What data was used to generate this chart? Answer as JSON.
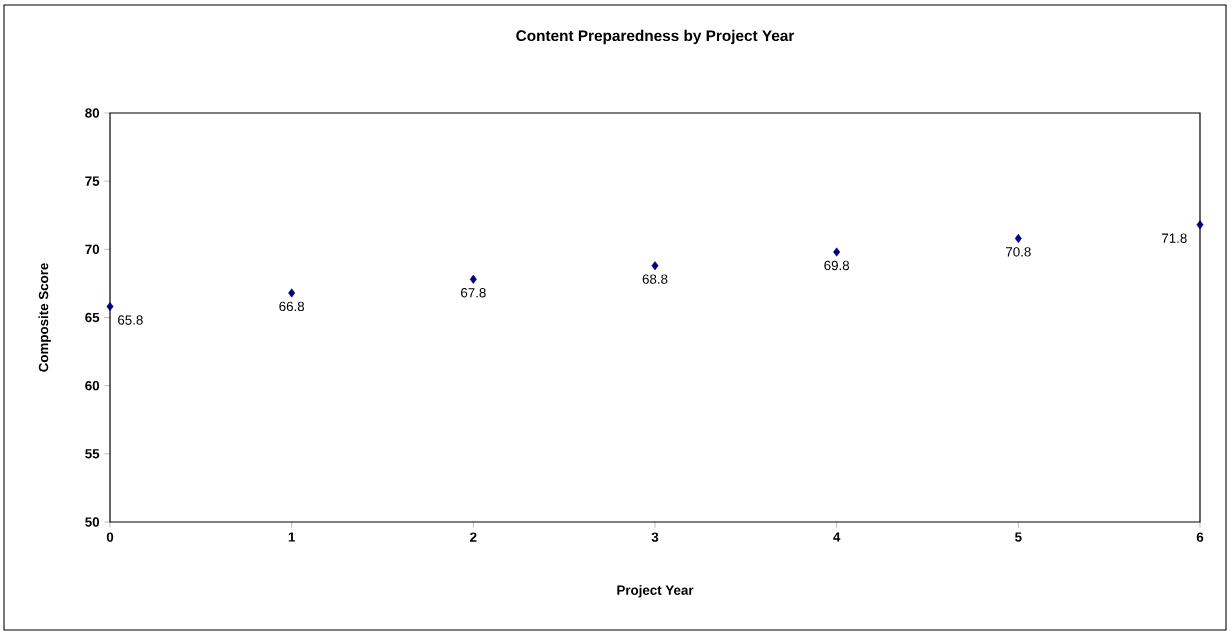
{
  "chart_data": {
    "type": "scatter",
    "title": "Content Preparedness by Project Year",
    "xlabel": "Project Year",
    "ylabel": "Composite Score",
    "x": [
      0,
      1,
      2,
      3,
      4,
      5,
      6
    ],
    "values": [
      65.8,
      66.8,
      67.8,
      68.8,
      69.8,
      70.8,
      71.8
    ],
    "color": "#000080",
    "marker": "diamond",
    "data_labels": true,
    "xlim": [
      0,
      6
    ],
    "ylim": [
      50,
      80
    ],
    "xticks": [
      0,
      1,
      2,
      3,
      4,
      5,
      6
    ],
    "yticks": [
      50,
      55,
      60,
      65,
      70,
      75,
      80
    ]
  }
}
